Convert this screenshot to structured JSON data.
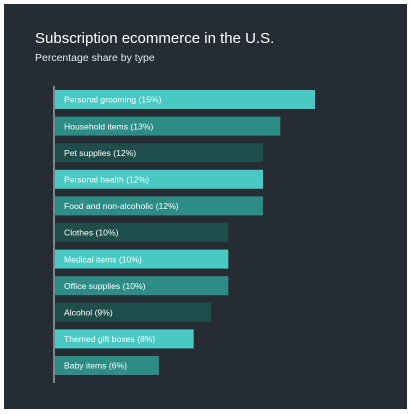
{
  "header": {
    "title": "Subscription ecommerce in the U.S.",
    "subtitle": "Percentage share by type"
  },
  "colors": {
    "background": "#252c34",
    "bar_palette": [
      "#48c9c4",
      "#2d8c86",
      "#1e4d4b"
    ],
    "axis": "#d8dde2",
    "label": "#ffffff"
  },
  "chart_data": {
    "type": "bar",
    "orientation": "horizontal",
    "title": "Subscription ecommerce in the U.S.",
    "subtitle": "Percentage share by type",
    "unit": "%",
    "grid": false,
    "legend": "none",
    "xlim": [
      0,
      15
    ],
    "categories": [
      "Personal grooming",
      "Household items",
      "Pet supplies",
      "Personal health",
      "Food and non-alcoholic",
      "Clothes",
      "Medical items",
      "Office supplies",
      "Alcohol",
      "Themed gift boxes",
      "Baby items"
    ],
    "values": [
      15,
      13,
      12,
      12,
      12,
      10,
      10,
      10,
      9,
      8,
      6
    ],
    "labels": [
      "Personal grooming (15%)",
      "Household items (13%)",
      "Pet supplies (12%)",
      "Personal health (12%)",
      "Food and non-alcoholic (12%)",
      "Clothes (10%)",
      "Medical items (10%)",
      "Office supplies (10%)",
      "Alcohol (9%)",
      "Themed gift boxes (8%)",
      "Baby items (6%)"
    ],
    "bar_colors": [
      "#48c9c4",
      "#2d8c86",
      "#1e4d4b",
      "#48c9c4",
      "#2d8c86",
      "#1e4d4b",
      "#48c9c4",
      "#2d8c86",
      "#1e4d4b",
      "#48c9c4",
      "#2d8c86"
    ]
  }
}
